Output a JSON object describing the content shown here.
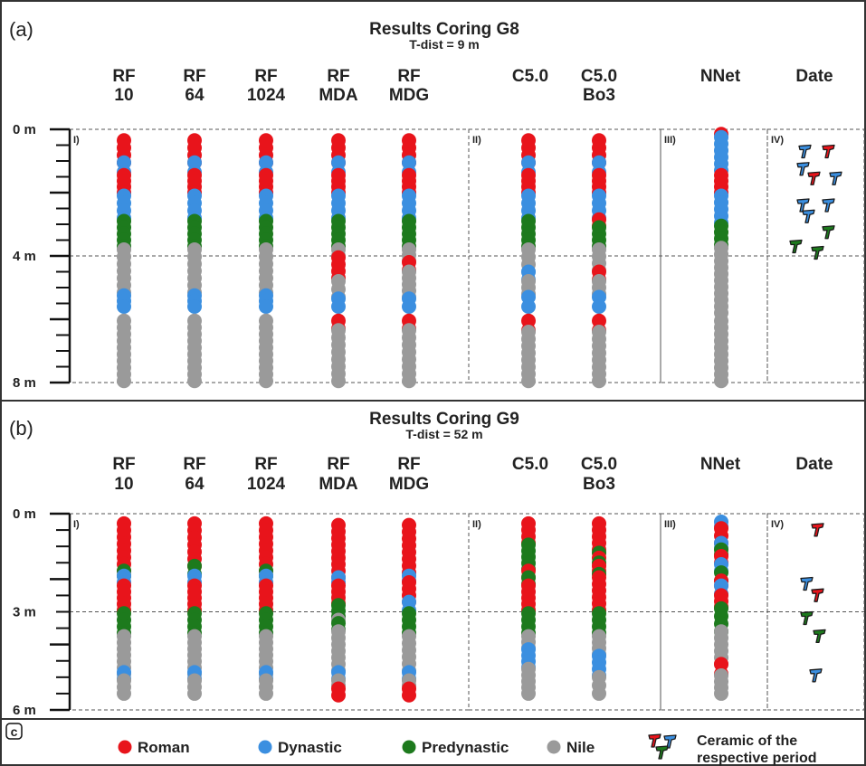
{
  "colors": {
    "Roman": "#e8141b",
    "Dynastic": "#3b8fe0",
    "Predynastic": "#1d7a1d",
    "Nile": "#9a9a9a",
    "text": "#222222",
    "frame": "#333333"
  },
  "columns": {
    "c1": [
      "RF",
      "10"
    ],
    "c2": [
      "RF",
      "64"
    ],
    "c3": [
      "RF",
      "1024"
    ],
    "c4": [
      "RF",
      "MDA"
    ],
    "c5": [
      "RF",
      "MDG"
    ],
    "c6": [
      "C5.0",
      ""
    ],
    "c7": [
      "C5.0",
      "Bo3"
    ],
    "c8": [
      "NNet",
      ""
    ],
    "c9": [
      "Date",
      ""
    ]
  },
  "group_labels": [
    "I)",
    "II)",
    "III)",
    "IV)"
  ],
  "legend": {
    "panel_label": "c",
    "items": [
      "Roman",
      "Dynastic",
      "Predynastic",
      "Nile"
    ],
    "ceramic_line1": "Ceramic of the",
    "ceramic_line2": "respective period"
  },
  "chart_data": [
    {
      "type": "scatter",
      "panel_label": "(a)",
      "title": "Results Coring G8",
      "subtitle": "T-dist = 9 m",
      "ylabel": "",
      "yticks": [
        "0 m",
        "4 m",
        "8 m"
      ],
      "ylim": [
        0,
        8
      ],
      "y_unit": "m depth",
      "series": [
        {
          "column": "c1",
          "intervals": [
            [
              0.35,
              1.05,
              "Roman"
            ],
            [
              1.05,
              1.35,
              "Dynastic"
            ],
            [
              1.45,
              2.0,
              "Roman"
            ],
            [
              2.1,
              2.8,
              "Dynastic"
            ],
            [
              2.9,
              3.7,
              "Predynastic"
            ],
            [
              3.8,
              5.15,
              "Nile"
            ],
            [
              5.25,
              5.6,
              "Dynastic"
            ],
            [
              6.05,
              7.95,
              "Nile"
            ]
          ]
        },
        {
          "column": "c2",
          "intervals": [
            [
              0.35,
              1.05,
              "Roman"
            ],
            [
              1.05,
              1.35,
              "Dynastic"
            ],
            [
              1.45,
              2.0,
              "Roman"
            ],
            [
              2.1,
              2.8,
              "Dynastic"
            ],
            [
              2.9,
              3.7,
              "Predynastic"
            ],
            [
              3.8,
              5.15,
              "Nile"
            ],
            [
              5.25,
              5.6,
              "Dynastic"
            ],
            [
              6.05,
              7.95,
              "Nile"
            ]
          ]
        },
        {
          "column": "c3",
          "intervals": [
            [
              0.35,
              1.05,
              "Roman"
            ],
            [
              1.05,
              1.35,
              "Dynastic"
            ],
            [
              1.45,
              2.0,
              "Roman"
            ],
            [
              2.1,
              2.8,
              "Dynastic"
            ],
            [
              2.9,
              3.7,
              "Predynastic"
            ],
            [
              3.8,
              5.15,
              "Nile"
            ],
            [
              5.25,
              5.6,
              "Dynastic"
            ],
            [
              6.05,
              7.95,
              "Nile"
            ]
          ]
        },
        {
          "column": "c4",
          "intervals": [
            [
              0.35,
              1.05,
              "Roman"
            ],
            [
              1.05,
              1.35,
              "Dynastic"
            ],
            [
              1.45,
              2.0,
              "Roman"
            ],
            [
              2.1,
              2.8,
              "Dynastic"
            ],
            [
              2.9,
              3.7,
              "Predynastic"
            ],
            [
              3.8,
              4.0,
              "Nile"
            ],
            [
              4.05,
              4.7,
              "Roman"
            ],
            [
              4.8,
              5.3,
              "Nile"
            ],
            [
              5.35,
              5.6,
              "Dynastic"
            ],
            [
              6.05,
              6.3,
              "Roman"
            ],
            [
              6.35,
              7.95,
              "Nile"
            ]
          ]
        },
        {
          "column": "c5",
          "intervals": [
            [
              0.35,
              1.05,
              "Roman"
            ],
            [
              1.05,
              1.35,
              "Dynastic"
            ],
            [
              1.45,
              2.0,
              "Roman"
            ],
            [
              2.1,
              2.8,
              "Dynastic"
            ],
            [
              2.9,
              3.7,
              "Predynastic"
            ],
            [
              3.8,
              4.15,
              "Nile"
            ],
            [
              4.2,
              4.45,
              "Roman"
            ],
            [
              4.5,
              5.3,
              "Nile"
            ],
            [
              5.35,
              5.6,
              "Dynastic"
            ],
            [
              6.05,
              6.3,
              "Roman"
            ],
            [
              6.35,
              7.95,
              "Nile"
            ]
          ]
        },
        {
          "column": "c6",
          "intervals": [
            [
              0.35,
              1.05,
              "Roman"
            ],
            [
              1.05,
              1.35,
              "Dynastic"
            ],
            [
              1.45,
              2.0,
              "Roman"
            ],
            [
              2.1,
              2.8,
              "Dynastic"
            ],
            [
              2.9,
              3.7,
              "Predynastic"
            ],
            [
              3.8,
              4.5,
              "Nile"
            ],
            [
              4.5,
              4.75,
              "Dynastic"
            ],
            [
              4.8,
              5.2,
              "Nile"
            ],
            [
              5.3,
              5.6,
              "Dynastic"
            ],
            [
              6.05,
              6.35,
              "Roman"
            ],
            [
              6.4,
              7.95,
              "Nile"
            ]
          ]
        },
        {
          "column": "c7",
          "intervals": [
            [
              0.35,
              1.05,
              "Roman"
            ],
            [
              1.05,
              1.35,
              "Dynastic"
            ],
            [
              1.45,
              2.0,
              "Roman"
            ],
            [
              2.1,
              2.8,
              "Dynastic"
            ],
            [
              2.85,
              3.05,
              "Roman"
            ],
            [
              3.1,
              3.7,
              "Predynastic"
            ],
            [
              3.8,
              4.45,
              "Nile"
            ],
            [
              4.5,
              4.75,
              "Roman"
            ],
            [
              4.8,
              5.2,
              "Nile"
            ],
            [
              5.3,
              5.6,
              "Dynastic"
            ],
            [
              6.05,
              6.35,
              "Roman"
            ],
            [
              6.4,
              7.95,
              "Nile"
            ]
          ]
        },
        {
          "column": "c8",
          "intervals": [
            [
              0.1,
              0.2,
              "Roman"
            ],
            [
              0.25,
              1.3,
              "Dynastic"
            ],
            [
              1.45,
              2.0,
              "Roman"
            ],
            [
              2.1,
              2.95,
              "Dynastic"
            ],
            [
              3.05,
              3.65,
              "Predynastic"
            ],
            [
              3.75,
              5.8,
              "Nile"
            ],
            [
              6.05,
              7.95,
              "Nile"
            ]
          ]
        }
      ],
      "ceramics": [
        [
          0.5,
          "Dynastic"
        ],
        [
          0.5,
          "Roman"
        ],
        [
          1.05,
          "Dynastic"
        ],
        [
          1.35,
          "Roman"
        ],
        [
          1.35,
          "Dynastic"
        ],
        [
          2.2,
          "Dynastic"
        ],
        [
          2.2,
          "Dynastic"
        ],
        [
          2.55,
          "Dynastic"
        ],
        [
          3.05,
          "Predynastic"
        ],
        [
          3.5,
          "Predynastic"
        ],
        [
          3.7,
          "Predynastic"
        ]
      ]
    },
    {
      "type": "scatter",
      "panel_label": "(b)",
      "title": "Results Coring G9",
      "subtitle": "T-dist = 52 m",
      "ylabel": "",
      "yticks": [
        "0 m",
        "3 m",
        "6 m"
      ],
      "ylim": [
        0,
        6
      ],
      "y_unit": "m depth",
      "series": [
        {
          "column": "c1",
          "intervals": [
            [
              0.3,
              1.75,
              "Roman"
            ],
            [
              1.75,
              1.9,
              "Predynastic"
            ],
            [
              1.9,
              2.1,
              "Dynastic"
            ],
            [
              2.2,
              2.95,
              "Roman"
            ],
            [
              3.05,
              3.65,
              "Predynastic"
            ],
            [
              3.75,
              4.9,
              "Nile"
            ],
            [
              4.85,
              5.05,
              "Dynastic"
            ],
            [
              5.1,
              5.5,
              "Nile"
            ]
          ]
        },
        {
          "column": "c2",
          "intervals": [
            [
              0.3,
              1.6,
              "Roman"
            ],
            [
              1.6,
              1.85,
              "Predynastic"
            ],
            [
              1.9,
              2.1,
              "Dynastic"
            ],
            [
              2.2,
              2.95,
              "Roman"
            ],
            [
              3.05,
              3.65,
              "Predynastic"
            ],
            [
              3.75,
              4.9,
              "Nile"
            ],
            [
              4.85,
              5.05,
              "Dynastic"
            ],
            [
              5.1,
              5.5,
              "Nile"
            ]
          ]
        },
        {
          "column": "c3",
          "intervals": [
            [
              0.3,
              1.75,
              "Roman"
            ],
            [
              1.75,
              1.9,
              "Predynastic"
            ],
            [
              1.9,
              2.1,
              "Dynastic"
            ],
            [
              2.2,
              2.95,
              "Roman"
            ],
            [
              3.05,
              3.65,
              "Predynastic"
            ],
            [
              3.75,
              4.9,
              "Nile"
            ],
            [
              4.85,
              5.05,
              "Dynastic"
            ],
            [
              5.1,
              5.5,
              "Nile"
            ]
          ]
        },
        {
          "column": "c4",
          "intervals": [
            [
              0.35,
              1.95,
              "Roman"
            ],
            [
              1.95,
              2.1,
              "Dynastic"
            ],
            [
              2.2,
              2.75,
              "Roman"
            ],
            [
              2.8,
              3.15,
              "Predynastic"
            ],
            [
              3.2,
              3.3,
              "Nile"
            ],
            [
              3.35,
              3.55,
              "Predynastic"
            ],
            [
              3.6,
              4.8,
              "Nile"
            ],
            [
              4.85,
              5.05,
              "Dynastic"
            ],
            [
              5.1,
              5.25,
              "Nile"
            ],
            [
              5.35,
              5.55,
              "Roman"
            ]
          ]
        },
        {
          "column": "c5",
          "intervals": [
            [
              0.35,
              1.8,
              "Roman"
            ],
            [
              1.9,
              2.05,
              "Dynastic"
            ],
            [
              2.1,
              2.7,
              "Roman"
            ],
            [
              2.7,
              2.95,
              "Dynastic"
            ],
            [
              3.05,
              3.65,
              "Predynastic"
            ],
            [
              3.75,
              4.8,
              "Nile"
            ],
            [
              4.85,
              5.05,
              "Dynastic"
            ],
            [
              5.1,
              5.25,
              "Nile"
            ],
            [
              5.35,
              5.55,
              "Roman"
            ]
          ]
        },
        {
          "column": "c6",
          "intervals": [
            [
              0.3,
              0.9,
              "Roman"
            ],
            [
              0.95,
              1.7,
              "Predynastic"
            ],
            [
              1.75,
              1.95,
              "Roman"
            ],
            [
              1.95,
              2.15,
              "Predynastic"
            ],
            [
              2.2,
              2.95,
              "Roman"
            ],
            [
              3.05,
              3.65,
              "Predynastic"
            ],
            [
              3.75,
              4.1,
              "Nile"
            ],
            [
              4.15,
              4.7,
              "Dynastic"
            ],
            [
              4.75,
              5.5,
              "Nile"
            ]
          ]
        },
        {
          "column": "c7",
          "intervals": [
            [
              0.3,
              1.1,
              "Roman"
            ],
            [
              1.15,
              1.25,
              "Predynastic"
            ],
            [
              1.3,
              1.4,
              "Roman"
            ],
            [
              1.45,
              1.55,
              "Predynastic"
            ],
            [
              1.6,
              1.75,
              "Roman"
            ],
            [
              1.8,
              1.9,
              "Predynastic"
            ],
            [
              1.95,
              2.95,
              "Roman"
            ],
            [
              3.05,
              3.65,
              "Predynastic"
            ],
            [
              3.75,
              4.3,
              "Nile"
            ],
            [
              4.35,
              4.95,
              "Dynastic"
            ],
            [
              5.0,
              5.5,
              "Nile"
            ]
          ]
        },
        {
          "column": "c8",
          "intervals": [
            [
              0.25,
              0.4,
              "Dynastic"
            ],
            [
              0.45,
              0.9,
              "Roman"
            ],
            [
              0.9,
              1.05,
              "Dynastic"
            ],
            [
              1.1,
              1.25,
              "Predynastic"
            ],
            [
              1.3,
              1.5,
              "Roman"
            ],
            [
              1.55,
              1.75,
              "Dynastic"
            ],
            [
              1.8,
              2.05,
              "Predynastic"
            ],
            [
              2.05,
              2.2,
              "Roman"
            ],
            [
              2.2,
              2.45,
              "Dynastic"
            ],
            [
              2.5,
              2.85,
              "Roman"
            ],
            [
              2.9,
              3.6,
              "Predynastic"
            ],
            [
              3.6,
              4.6,
              "Nile"
            ],
            [
              4.6,
              4.9,
              "Roman"
            ],
            [
              4.95,
              5.5,
              "Nile"
            ]
          ]
        }
      ],
      "ceramics": [
        [
          0.3,
          "Roman"
        ],
        [
          1.95,
          "Dynastic"
        ],
        [
          2.3,
          "Roman"
        ],
        [
          3.0,
          "Predynastic"
        ],
        [
          3.55,
          "Predynastic"
        ],
        [
          4.75,
          "Dynastic"
        ]
      ]
    }
  ]
}
